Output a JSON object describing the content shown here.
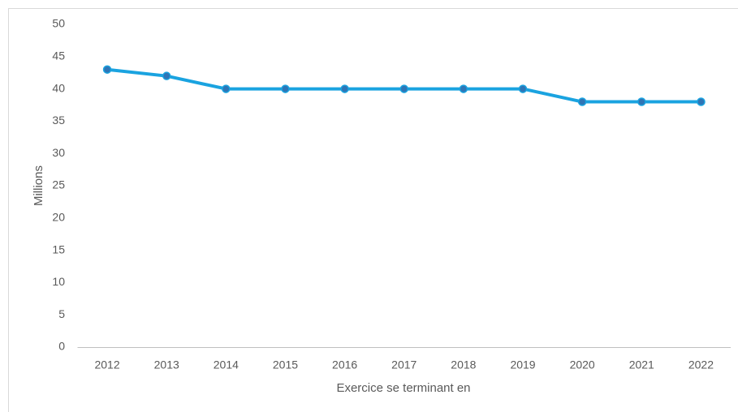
{
  "chart_data": {
    "type": "line",
    "x_label": "Exercice se terminant en",
    "y_label": "Millions",
    "categories": [
      "2012",
      "2013",
      "2014",
      "2015",
      "2016",
      "2017",
      "2018",
      "2019",
      "2020",
      "2021",
      "2022"
    ],
    "series": [
      {
        "name": "Millions",
        "color": "#1aa3e0",
        "marker_color": "#2e75b6",
        "values": [
          43,
          42,
          40,
          40,
          40,
          40,
          40,
          40,
          38,
          38,
          38
        ]
      }
    ],
    "ylim": [
      0,
      50
    ],
    "yticks": [
      0,
      5,
      10,
      15,
      20,
      25,
      30,
      35,
      40,
      45,
      50
    ],
    "grid": false
  }
}
